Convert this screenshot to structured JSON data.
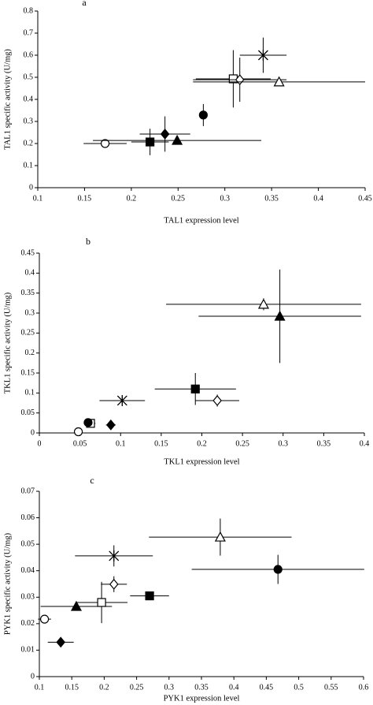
{
  "chart_data": [
    {
      "type": "scatter",
      "title": "a",
      "xlabel": "TAL1 expression level",
      "ylabel": "TAL1 specific activity (U/mg)",
      "xlim": [
        0.1,
        0.45
      ],
      "ylim": [
        0,
        0.8
      ],
      "xticks": [
        0.1,
        0.15,
        0.2,
        0.25,
        0.3,
        0.35,
        0.4,
        0.45
      ],
      "yticks": [
        0,
        0.1,
        0.2,
        0.3,
        0.4,
        0.5,
        0.6,
        0.7,
        0.8
      ],
      "series": [
        {
          "marker": "open-circle",
          "color": "#000000",
          "x": [
            0.172
          ],
          "values": [
            0.2
          ],
          "xerr": [
            0.023
          ],
          "yerr": [
            0.01
          ]
        },
        {
          "marker": "filled-square",
          "color": "#000000",
          "x": [
            0.22
          ],
          "values": [
            0.207
          ],
          "xerr": [
            0.02
          ],
          "yerr": [
            0.06
          ]
        },
        {
          "marker": "filled-diamond",
          "color": "#000000",
          "x": [
            0.236
          ],
          "values": [
            0.243
          ],
          "xerr": [
            0.027
          ],
          "yerr": [
            0.08
          ]
        },
        {
          "marker": "filled-triangle",
          "color": "#000000",
          "x": [
            0.249
          ],
          "values": [
            0.214
          ],
          "xerr": [
            0.09
          ],
          "yerr": [
            0.01
          ]
        },
        {
          "marker": "filled-circle",
          "color": "#000000",
          "x": [
            0.277
          ],
          "values": [
            0.329
          ],
          "xerr": [
            0.003
          ],
          "yerr": [
            0.05
          ]
        },
        {
          "marker": "open-square",
          "color": "#000000",
          "x": [
            0.309
          ],
          "values": [
            0.493
          ],
          "xerr": [
            0.04
          ],
          "yerr": [
            0.13
          ]
        },
        {
          "marker": "open-diamond",
          "color": "#000000",
          "x": [
            0.316
          ],
          "values": [
            0.489
          ],
          "xerr": [
            0.05
          ],
          "yerr": [
            0.1
          ]
        },
        {
          "marker": "open-triangle",
          "color": "#000000",
          "x": [
            0.358
          ],
          "values": [
            0.479
          ],
          "xerr": [
            0.092
          ],
          "yerr": [
            0.01
          ]
        },
        {
          "marker": "asterisk",
          "color": "#000000",
          "x": [
            0.341
          ],
          "values": [
            0.6
          ],
          "xerr": [
            0.025
          ],
          "yerr": [
            0.08
          ]
        }
      ]
    },
    {
      "type": "scatter",
      "title": "b",
      "xlabel": "TKL1 expression level",
      "ylabel": "TKL1 specific activity (U/mg)",
      "xlim": [
        0,
        0.4
      ],
      "ylim": [
        0,
        0.45
      ],
      "xticks": [
        0,
        0.05,
        0.1,
        0.15,
        0.2,
        0.25,
        0.3,
        0.35,
        0.4
      ],
      "yticks": [
        0,
        0.05,
        0.1,
        0.15,
        0.2,
        0.25,
        0.3,
        0.35,
        0.4,
        0.45
      ],
      "series": [
        {
          "marker": "open-circle",
          "color": "#000000",
          "x": [
            0.048
          ],
          "values": [
            0.003
          ],
          "xerr": [
            0.004
          ],
          "yerr": [
            0.002
          ]
        },
        {
          "marker": "open-square",
          "color": "#000000",
          "x": [
            0.063
          ],
          "values": [
            0.024
          ],
          "xerr": [
            0.006
          ],
          "yerr": [
            0.004
          ]
        },
        {
          "marker": "filled-circle",
          "color": "#000000",
          "x": [
            0.06
          ],
          "values": [
            0.026
          ],
          "xerr": [
            0.004
          ],
          "yerr": [
            0.003
          ]
        },
        {
          "marker": "filled-diamond",
          "color": "#000000",
          "x": [
            0.088
          ],
          "values": [
            0.02
          ],
          "xerr": [
            0.006
          ],
          "yerr": [
            0.003
          ]
        },
        {
          "marker": "asterisk",
          "color": "#000000",
          "x": [
            0.102
          ],
          "values": [
            0.081
          ],
          "xerr": [
            0.028
          ],
          "yerr": [
            0.01
          ]
        },
        {
          "marker": "filled-square",
          "color": "#000000",
          "x": [
            0.192
          ],
          "values": [
            0.11
          ],
          "xerr": [
            0.05
          ],
          "yerr": [
            0.04
          ]
        },
        {
          "marker": "open-diamond",
          "color": "#000000",
          "x": [
            0.219
          ],
          "values": [
            0.081
          ],
          "xerr": [
            0.027
          ],
          "yerr": [
            0.015
          ]
        },
        {
          "marker": "open-triangle",
          "color": "#000000",
          "x": [
            0.276
          ],
          "values": [
            0.322
          ],
          "xerr": [
            0.12
          ],
          "yerr": [
            0.015
          ]
        },
        {
          "marker": "filled-triangle",
          "color": "#000000",
          "x": [
            0.296
          ],
          "values": [
            0.292
          ],
          "xerr": [
            0.1
          ],
          "yerr": [
            0.117
          ]
        }
      ]
    },
    {
      "type": "scatter",
      "title": "c",
      "xlabel": "PYK1 expression level",
      "ylabel": "PYK1 specific activity (U/mg)",
      "xlim": [
        0.1,
        0.6
      ],
      "ylim": [
        0,
        0.07
      ],
      "xticks": [
        0.1,
        0.15,
        0.2,
        0.25,
        0.3,
        0.35,
        0.4,
        0.45,
        0.5,
        0.55,
        0.6
      ],
      "yticks": [
        0,
        0.01,
        0.02,
        0.03,
        0.04,
        0.05,
        0.06,
        0.07
      ],
      "series": [
        {
          "marker": "open-circle",
          "color": "#000000",
          "x": [
            0.108
          ],
          "values": [
            0.0217
          ],
          "xerr": [
            0.01
          ],
          "yerr": [
            0.001
          ]
        },
        {
          "marker": "filled-diamond",
          "color": "#000000",
          "x": [
            0.133
          ],
          "values": [
            0.013
          ],
          "xerr": [
            0.02
          ],
          "yerr": [
            0.001
          ]
        },
        {
          "marker": "filled-triangle",
          "color": "#000000",
          "x": [
            0.157
          ],
          "values": [
            0.0265
          ],
          "xerr": [
            0.055
          ],
          "yerr": [
            0.001
          ]
        },
        {
          "marker": "open-square",
          "color": "#000000",
          "x": [
            0.196
          ],
          "values": [
            0.028
          ],
          "xerr": [
            0.04
          ],
          "yerr": [
            0.0078
          ]
        },
        {
          "marker": "open-diamond",
          "color": "#000000",
          "x": [
            0.215
          ],
          "values": [
            0.0349
          ],
          "xerr": [
            0.02
          ],
          "yerr": [
            0.003
          ]
        },
        {
          "marker": "asterisk",
          "color": "#000000",
          "x": [
            0.215
          ],
          "values": [
            0.0456
          ],
          "xerr": [
            0.06
          ],
          "yerr": [
            0.004
          ]
        },
        {
          "marker": "filled-square",
          "color": "#000000",
          "x": [
            0.27
          ],
          "values": [
            0.0305
          ],
          "xerr": [
            0.03
          ],
          "yerr": [
            0.0005
          ]
        },
        {
          "marker": "open-triangle",
          "color": "#000000",
          "x": [
            0.379
          ],
          "values": [
            0.0527
          ],
          "xerr": [
            0.11
          ],
          "yerr": [
            0.007
          ]
        },
        {
          "marker": "filled-circle",
          "color": "#000000",
          "x": [
            0.468
          ],
          "values": [
            0.0405
          ],
          "xerr": [
            0.133
          ],
          "yerr": [
            0.0055
          ]
        }
      ]
    }
  ]
}
